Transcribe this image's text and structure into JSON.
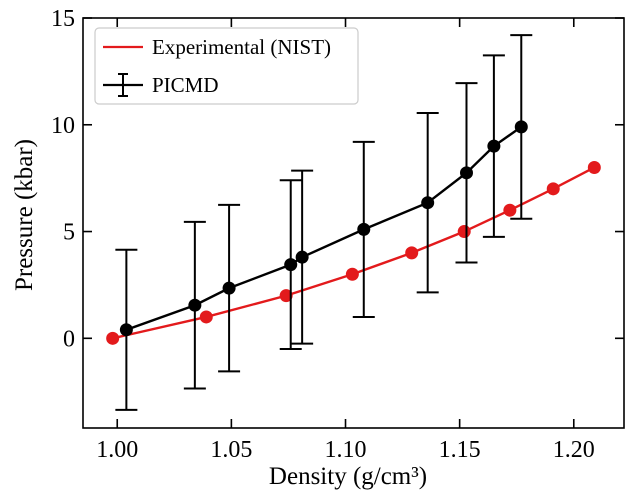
{
  "chart_data": {
    "type": "line",
    "xlabel": "Density (g/cm³)",
    "ylabel": "Pressure (kbar)",
    "xlim": [
      0.985,
      1.222
    ],
    "ylim": [
      -4.2,
      15
    ],
    "xticks": [
      1.0,
      1.05,
      1.1,
      1.15,
      1.2
    ],
    "xtick_labels": [
      "1.00",
      "1.05",
      "1.10",
      "1.15",
      "1.20"
    ],
    "yticks": [
      0,
      5,
      10,
      15
    ],
    "ytick_labels": [
      "0",
      "5",
      "10",
      "15"
    ],
    "grid": false,
    "legend_position": "top-left",
    "series": [
      {
        "name": "Experimental (NIST)",
        "color": "#e31a1c",
        "marker": "circle",
        "x": [
          0.998,
          1.039,
          1.074,
          1.103,
          1.129,
          1.152,
          1.172,
          1.191,
          1.209
        ],
        "y": [
          0.0,
          1.0,
          2.0,
          3.0,
          4.0,
          5.0,
          6.0,
          7.0,
          8.0
        ]
      },
      {
        "name": "PICMD",
        "color": "#000000",
        "marker": "circle",
        "x": [
          1.004,
          1.034,
          1.049,
          1.076,
          1.081,
          1.108,
          1.136,
          1.153,
          1.165,
          1.177
        ],
        "y": [
          0.4,
          1.55,
          2.35,
          3.45,
          3.8,
          5.1,
          6.35,
          7.75,
          9.0,
          9.9
        ],
        "error": [
          3.75,
          3.9,
          3.9,
          3.95,
          4.05,
          4.1,
          4.2,
          4.2,
          4.25,
          4.3
        ]
      }
    ]
  }
}
